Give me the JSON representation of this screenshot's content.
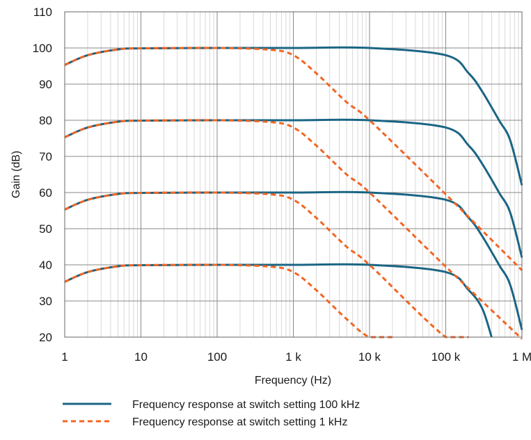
{
  "chart_data": {
    "type": "line",
    "title": "",
    "xlabel": "Frequency (Hz)",
    "ylabel": "Gain (dB)",
    "x_scale": "log",
    "xlim": [
      1,
      1000000
    ],
    "ylim": [
      20,
      110
    ],
    "grid": true,
    "legend_position": "bottom",
    "x_ticks": [
      {
        "value": 1,
        "label": "1"
      },
      {
        "value": 10,
        "label": "10"
      },
      {
        "value": 100,
        "label": "100"
      },
      {
        "value": 1000,
        "label": "1 k"
      },
      {
        "value": 10000,
        "label": "10 k"
      },
      {
        "value": 100000,
        "label": "100 k"
      },
      {
        "value": 1000000,
        "label": "1 M"
      }
    ],
    "y_ticks": [
      {
        "value": 20,
        "label": "20"
      },
      {
        "value": 30,
        "label": "30"
      },
      {
        "value": 40,
        "label": "40"
      },
      {
        "value": 50,
        "label": "50"
      },
      {
        "value": 60,
        "label": "60"
      },
      {
        "value": 70,
        "label": "70"
      },
      {
        "value": 80,
        "label": "80"
      },
      {
        "value": 90,
        "label": "90"
      },
      {
        "value": 100,
        "label": "100"
      },
      {
        "value": 110,
        "label": "110"
      }
    ],
    "legend": [
      {
        "label": "Frequency response at switch setting 100 kHz",
        "color": "#1a6584",
        "dash": "solid"
      },
      {
        "label": "Frequency response at switch setting 1 kHz",
        "color": "#f26522",
        "dash": "dashed"
      }
    ],
    "series": [
      {
        "group": "100 kHz",
        "color": "#1a6584",
        "x": [
          1,
          2,
          5,
          10,
          100,
          1000,
          10000,
          100000,
          200000,
          300000,
          500000,
          700000,
          1000000
        ],
        "y": [
          95.3,
          98,
          99.6,
          99.9,
          100,
          100,
          100,
          98,
          93,
          88,
          80,
          74.5,
          62
        ]
      },
      {
        "group": "100 kHz",
        "color": "#1a6584",
        "x": [
          1,
          2,
          5,
          10,
          100,
          1000,
          10000,
          100000,
          200000,
          300000,
          500000,
          700000,
          1000000
        ],
        "y": [
          75.3,
          78,
          79.6,
          79.9,
          80,
          80,
          80,
          78,
          73,
          68,
          60,
          54.5,
          42
        ]
      },
      {
        "group": "100 kHz",
        "color": "#1a6584",
        "x": [
          1,
          2,
          5,
          10,
          100,
          1000,
          10000,
          100000,
          200000,
          300000,
          500000,
          700000,
          1000000
        ],
        "y": [
          55.3,
          58,
          59.6,
          59.9,
          60,
          60,
          60,
          58,
          53,
          48,
          40,
          34.5,
          22
        ]
      },
      {
        "group": "100 kHz",
        "color": "#1a6584",
        "x": [
          1,
          2,
          5,
          10,
          100,
          1000,
          10000,
          100000,
          200000,
          300000,
          400000
        ],
        "y": [
          35.3,
          38,
          39.6,
          39.9,
          40,
          40,
          40,
          38,
          33,
          28,
          20
        ]
      },
      {
        "group": "1 kHz",
        "color": "#f26522",
        "x": [
          1,
          2,
          5,
          10,
          100,
          500,
          1000,
          2000,
          5000,
          10000,
          100000,
          1000000
        ],
        "y": [
          95.3,
          98,
          99.6,
          99.9,
          100,
          99.5,
          98,
          93,
          85,
          80,
          59.5,
          38.5
        ]
      },
      {
        "group": "1 kHz",
        "color": "#f26522",
        "x": [
          1,
          2,
          5,
          10,
          100,
          500,
          1000,
          2000,
          5000,
          10000,
          100000,
          1000000
        ],
        "y": [
          75.3,
          78,
          79.6,
          79.9,
          80,
          79.5,
          78,
          73,
          65,
          60,
          39.5,
          19.5
        ]
      },
      {
        "group": "1 kHz",
        "color": "#f26522",
        "x": [
          1,
          2,
          5,
          10,
          100,
          500,
          1000,
          2000,
          5000,
          10000,
          100000,
          200000
        ],
        "y": [
          55.3,
          58,
          59.6,
          59.9,
          60,
          59.5,
          58,
          53,
          45,
          40,
          20,
          20
        ]
      },
      {
        "group": "1 kHz",
        "color": "#f26522",
        "x": [
          1,
          2,
          5,
          10,
          100,
          500,
          1000,
          2000,
          5000,
          10000,
          20000
        ],
        "y": [
          35.3,
          38,
          39.6,
          39.9,
          40,
          39.5,
          38,
          33,
          25,
          20,
          20
        ]
      }
    ]
  }
}
